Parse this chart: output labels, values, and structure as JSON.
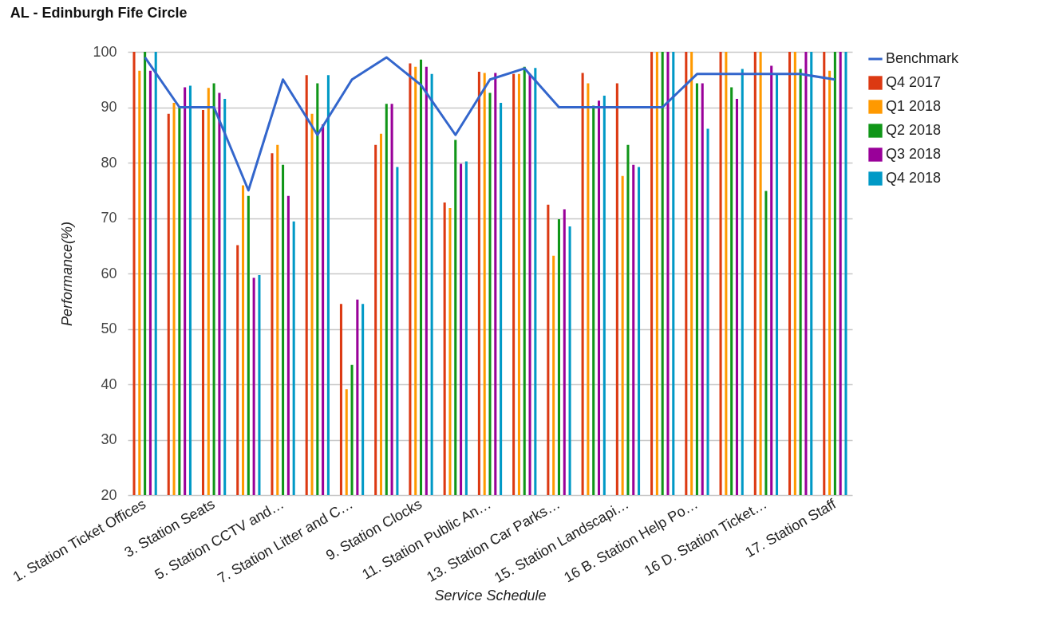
{
  "chart_data": {
    "type": "bar",
    "title": "AL - Edinburgh Fife Circle",
    "xlabel": "Service Schedule",
    "ylabel": "Performance(%)",
    "categories": [
      "1. Station Ticket Offices",
      null,
      "3. Station Seats",
      null,
      "5. Station CCTV and…",
      null,
      "7. Station Litter and C…",
      null,
      "9. Station Clocks",
      null,
      "11. Station Public An…",
      null,
      "13. Station Car Parks…",
      null,
      "15. Station Landscapi…",
      null,
      "16 B. Station Help Po…",
      null,
      "16 D. Station Ticket…",
      null,
      "17. Station Staff"
    ],
    "series": [
      {
        "name": "Benchmark",
        "type": "line",
        "color": "#3366cc",
        "values": [
          99,
          90,
          90,
          75,
          95,
          85,
          95,
          99,
          94,
          85,
          95,
          97,
          90,
          90,
          90,
          90,
          96,
          96,
          96,
          96,
          95
        ]
      },
      {
        "name": "Q4 2017",
        "color": "#dc3912",
        "values": [
          100,
          88.8,
          89.5,
          65.1,
          81.7,
          95.8,
          54.5,
          83.2,
          97.9,
          72.8,
          96.4,
          96,
          72.4,
          96.2,
          94.3,
          100,
          100,
          100,
          100,
          100,
          100
        ]
      },
      {
        "name": "Q1 2018",
        "color": "#ff9900",
        "values": [
          96.6,
          90.8,
          93.5,
          75.9,
          83.2,
          88.8,
          39.1,
          85.2,
          97.3,
          71.8,
          96.2,
          96,
          63.2,
          94.3,
          77.6,
          100,
          100,
          100,
          100,
          100,
          96.6
        ]
      },
      {
        "name": "Q2 2018",
        "color": "#109618",
        "values": [
          100,
          89.9,
          94.3,
          74,
          79.6,
          94.3,
          43.5,
          90.6,
          98.6,
          84.1,
          92.6,
          97.3,
          69.8,
          90.3,
          83.2,
          100,
          94.3,
          93.6,
          74.9,
          96.9,
          100
        ]
      },
      {
        "name": "Q3 2018",
        "color": "#990099",
        "values": [
          96.6,
          93.6,
          92.6,
          59.2,
          74,
          86.9,
          55.3,
          90.6,
          97.3,
          79.8,
          96.2,
          96,
          71.6,
          91.2,
          79.6,
          100,
          94.3,
          91.5,
          97.5,
          100,
          100
        ]
      },
      {
        "name": "Q4 2018",
        "color": "#0099c6",
        "values": [
          100,
          93.9,
          91.5,
          59.7,
          69.4,
          95.8,
          54.5,
          79.2,
          96,
          80.2,
          90.8,
          97.1,
          68.5,
          92.1,
          79.2,
          100,
          86.1,
          96.9,
          96,
          100,
          100
        ]
      }
    ],
    "ylim": [
      20,
      100
    ],
    "yticks": [
      20,
      30,
      40,
      50,
      60,
      70,
      80,
      90,
      100
    ],
    "grid": "y",
    "legend": "right"
  }
}
